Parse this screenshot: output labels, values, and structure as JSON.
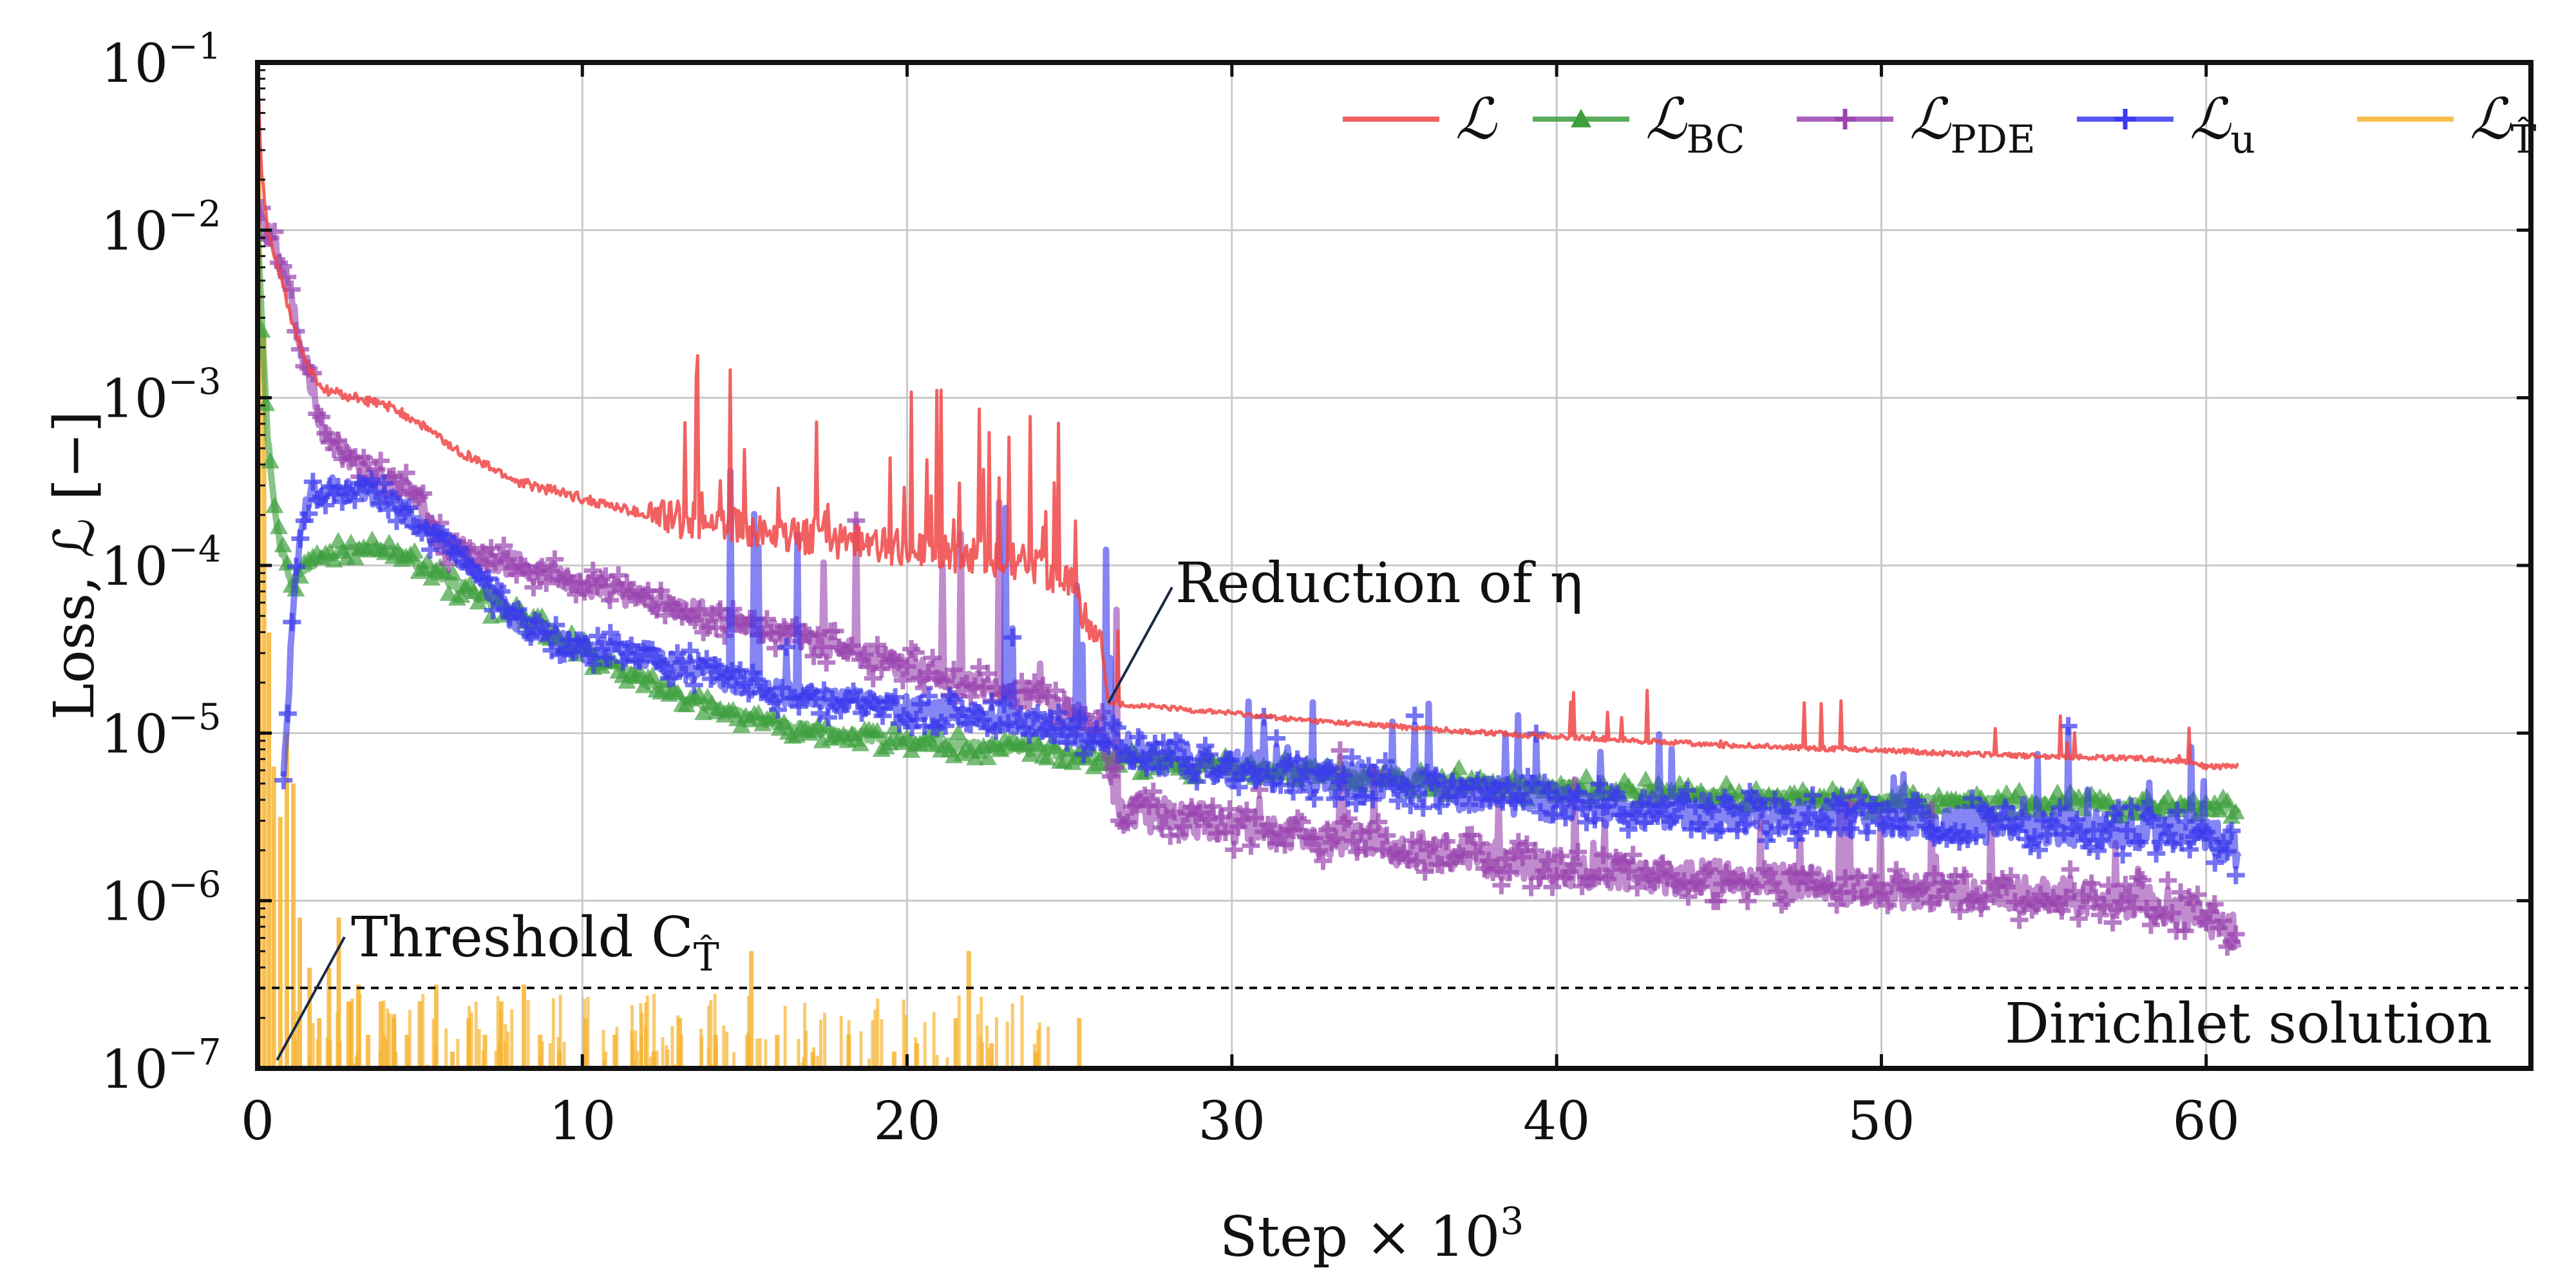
{
  "chart_data": {
    "type": "line",
    "title": "",
    "xlabel": "Step × 10",
    "xlabel_sup": "3",
    "ylabel": "Loss, ℒ [−]",
    "xlim": [
      0,
      70
    ],
    "ylim_log10": [
      -7,
      -1
    ],
    "y_scale": "log",
    "grid": true,
    "legend_position": "top-right",
    "x_ticks": [
      0,
      10,
      20,
      30,
      40,
      50,
      60
    ],
    "y_ticks": [
      {
        "exp": -1,
        "label": "10",
        "sup": "−1"
      },
      {
        "exp": -2,
        "label": "10",
        "sup": "−2"
      },
      {
        "exp": -3,
        "label": "10",
        "sup": "−3"
      },
      {
        "exp": -4,
        "label": "10",
        "sup": "−4"
      },
      {
        "exp": -5,
        "label": "10",
        "sup": "−5"
      },
      {
        "exp": -6,
        "label": "10",
        "sup": "−6"
      },
      {
        "exp": -7,
        "label": "10",
        "sup": "−7"
      }
    ],
    "series": [
      {
        "name": "ℒ",
        "sub": "",
        "color": "#f04545",
        "marker": "none",
        "x": [
          0,
          0.1,
          0.3,
          0.6,
          1,
          1.5,
          2,
          3,
          4,
          5,
          6,
          7,
          8,
          10,
          12,
          14,
          16,
          18,
          20,
          22,
          24,
          25,
          26,
          26.2,
          28,
          30,
          32,
          35,
          38,
          40,
          42,
          45,
          48,
          50,
          52,
          55,
          58,
          59.5,
          60,
          61
        ],
        "log10y": [
          -1.0,
          -1.6,
          -2.0,
          -2.2,
          -2.5,
          -2.8,
          -2.95,
          -3.0,
          -3.05,
          -3.15,
          -3.3,
          -3.4,
          -3.5,
          -3.6,
          -3.7,
          -3.75,
          -3.8,
          -3.85,
          -3.9,
          -3.95,
          -4.0,
          -4.1,
          -4.5,
          -4.82,
          -4.85,
          -4.88,
          -4.92,
          -4.96,
          -5.0,
          -5.02,
          -5.04,
          -5.07,
          -5.09,
          -5.1,
          -5.12,
          -5.14,
          -5.15,
          -5.17,
          -5.2,
          -5.2
        ]
      },
      {
        "name": "ℒ",
        "sub": "BC",
        "color": "#3f9f3f",
        "marker": "triangle",
        "x": [
          0,
          0.3,
          0.6,
          1,
          1.5,
          2,
          3,
          4,
          5,
          6,
          8,
          10,
          12,
          14,
          16,
          18,
          20,
          22,
          24,
          26,
          28,
          30,
          32,
          35,
          38,
          40,
          42,
          45,
          48,
          50,
          52,
          55,
          58,
          60,
          61
        ],
        "log10y": [
          -2.0,
          -3.2,
          -3.8,
          -4.1,
          -4.0,
          -3.95,
          -3.9,
          -3.9,
          -4.0,
          -4.1,
          -4.3,
          -4.5,
          -4.7,
          -4.85,
          -4.95,
          -5.0,
          -5.05,
          -5.08,
          -5.1,
          -5.15,
          -5.18,
          -5.2,
          -5.23,
          -5.27,
          -5.3,
          -5.32,
          -5.34,
          -5.37,
          -5.39,
          -5.4,
          -5.41,
          -5.42,
          -5.43,
          -5.44,
          -5.45
        ]
      },
      {
        "name": "ℒ",
        "sub": "PDE",
        "color": "#9a45b0",
        "marker": "plus",
        "x": [
          0,
          0.5,
          1,
          1.5,
          2,
          3,
          4,
          5,
          5.5,
          6,
          8,
          10,
          12,
          14,
          16,
          18,
          20,
          22,
          24,
          26,
          26.5,
          28,
          30,
          32,
          35,
          38,
          40,
          42,
          45,
          48,
          50,
          52,
          55,
          58,
          60,
          61
        ],
        "log10y": [
          -1.9,
          -2.1,
          -2.4,
          -2.8,
          -3.2,
          -3.4,
          -3.5,
          -3.6,
          -3.85,
          -3.9,
          -4.0,
          -4.1,
          -4.2,
          -4.3,
          -4.4,
          -4.5,
          -4.6,
          -4.7,
          -4.8,
          -4.95,
          -5.45,
          -5.5,
          -5.55,
          -5.6,
          -5.68,
          -5.75,
          -5.8,
          -5.83,
          -5.87,
          -5.9,
          -5.93,
          -5.95,
          -5.97,
          -6.0,
          -6.1,
          -6.2
        ]
      },
      {
        "name": "ℒ",
        "sub": "u",
        "color": "#3a3aee",
        "marker": "plus",
        "x": [
          0.8,
          1.0,
          1.2,
          1.5,
          2,
          3,
          4,
          5,
          6,
          7,
          8,
          10,
          12,
          14,
          16,
          18,
          20,
          22,
          24,
          26,
          28,
          30,
          32,
          35,
          38,
          40,
          42,
          45,
          48,
          50,
          52,
          55,
          58,
          60,
          61
        ],
        "log10y": [
          -5.3,
          -4.6,
          -4.0,
          -3.6,
          -3.55,
          -3.55,
          -3.6,
          -3.75,
          -3.9,
          -4.1,
          -4.35,
          -4.5,
          -4.55,
          -4.65,
          -4.75,
          -4.8,
          -4.85,
          -4.9,
          -4.95,
          -5.05,
          -5.15,
          -5.2,
          -5.25,
          -5.3,
          -5.38,
          -5.42,
          -5.45,
          -5.48,
          -5.5,
          -5.52,
          -5.54,
          -5.56,
          -5.58,
          -5.6,
          -5.7
        ]
      }
    ],
    "sparse_series": {
      "name": "ℒ",
      "sub": "T̂",
      "color": "#f7b432",
      "spikes": [
        [
          0.05,
          -1.5
        ],
        [
          0.2,
          -2.6
        ],
        [
          0.35,
          -4.4
        ],
        [
          0.5,
          -5.2
        ],
        [
          0.7,
          -5.5
        ],
        [
          0.9,
          -5.0
        ],
        [
          1.1,
          -5.3
        ],
        [
          1.3,
          -6.1
        ],
        [
          1.6,
          -6.4
        ],
        [
          1.9,
          -6.7
        ],
        [
          2.2,
          -6.4
        ],
        [
          2.5,
          -6.1
        ],
        [
          2.8,
          -6.6
        ],
        [
          3.1,
          -6.5
        ],
        [
          3.4,
          -6.8
        ],
        [
          3.8,
          -6.6
        ],
        [
          4.2,
          -6.7
        ],
        [
          4.6,
          -6.8
        ],
        [
          5.0,
          -6.6
        ],
        [
          5.5,
          -6.5
        ],
        [
          6.0,
          -6.9
        ],
        [
          6.5,
          -6.7
        ],
        [
          7.0,
          -6.8
        ],
        [
          7.5,
          -6.6
        ],
        [
          8.2,
          -6.5
        ],
        [
          8.7,
          -6.8
        ],
        [
          9.3,
          -6.9
        ],
        [
          10.1,
          -6.7
        ],
        [
          11.0,
          -6.8
        ],
        [
          12.2,
          -6.9
        ],
        [
          13.0,
          -6.7
        ],
        [
          14.1,
          -6.8
        ],
        [
          15.2,
          -6.3
        ],
        [
          16.0,
          -6.8
        ],
        [
          17.1,
          -6.9
        ],
        [
          18.2,
          -6.8
        ],
        [
          19.6,
          -6.9
        ],
        [
          20.3,
          -6.85
        ],
        [
          21.5,
          -6.7
        ],
        [
          21.9,
          -6.3
        ],
        [
          22.6,
          -6.85
        ],
        [
          24.0,
          -6.9
        ],
        [
          25.3,
          -6.7
        ]
      ]
    },
    "threshold": {
      "log10y": -6.52,
      "label": "Threshold C",
      "label_sub": "T̂",
      "region_label": "Dirichlet solution"
    },
    "annotations": [
      {
        "text": "Reduction of η",
        "x": 26.2,
        "log10y": -4.82
      }
    ]
  },
  "legend": [
    {
      "symbol": "ℒ",
      "sub": "",
      "color": "#f04545",
      "marker": "none"
    },
    {
      "symbol": "ℒ",
      "sub": "BC",
      "color": "#3f9f3f",
      "marker": "triangle"
    },
    {
      "symbol": "ℒ",
      "sub": "PDE",
      "color": "#9a45b0",
      "marker": "plus"
    },
    {
      "symbol": "ℒ",
      "sub": "u",
      "color": "#3a3aee",
      "marker": "plus"
    },
    {
      "symbol": "ℒ",
      "sub": "T̂",
      "color": "#f7b432",
      "marker": "none"
    }
  ]
}
